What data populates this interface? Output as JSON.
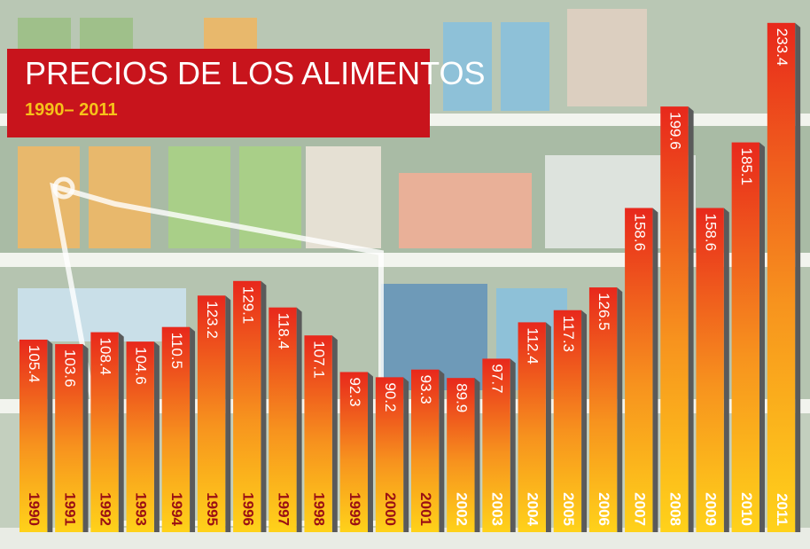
{
  "chart_data": {
    "type": "bar",
    "title": "PRECIOS DE LOS ALIMENTOS",
    "subtitle": "1990– 2011",
    "categories": [
      "1990",
      "1991",
      "1992",
      "1993",
      "1994",
      "1995",
      "1996",
      "1997",
      "1998",
      "1999",
      "2000",
      "2001",
      "2002",
      "2003",
      "2004",
      "2005",
      "2006",
      "2007",
      "2008",
      "2009",
      "2010",
      "2011"
    ],
    "values": [
      105.4,
      103.6,
      108.4,
      104.6,
      110.5,
      123.2,
      129.1,
      118.4,
      107.1,
      92.3,
      90.2,
      93.3,
      89.9,
      97.7,
      112.4,
      117.3,
      126.5,
      158.6,
      199.6,
      158.6,
      185.1,
      233.4
    ],
    "color": "#e8281c"
  }
}
